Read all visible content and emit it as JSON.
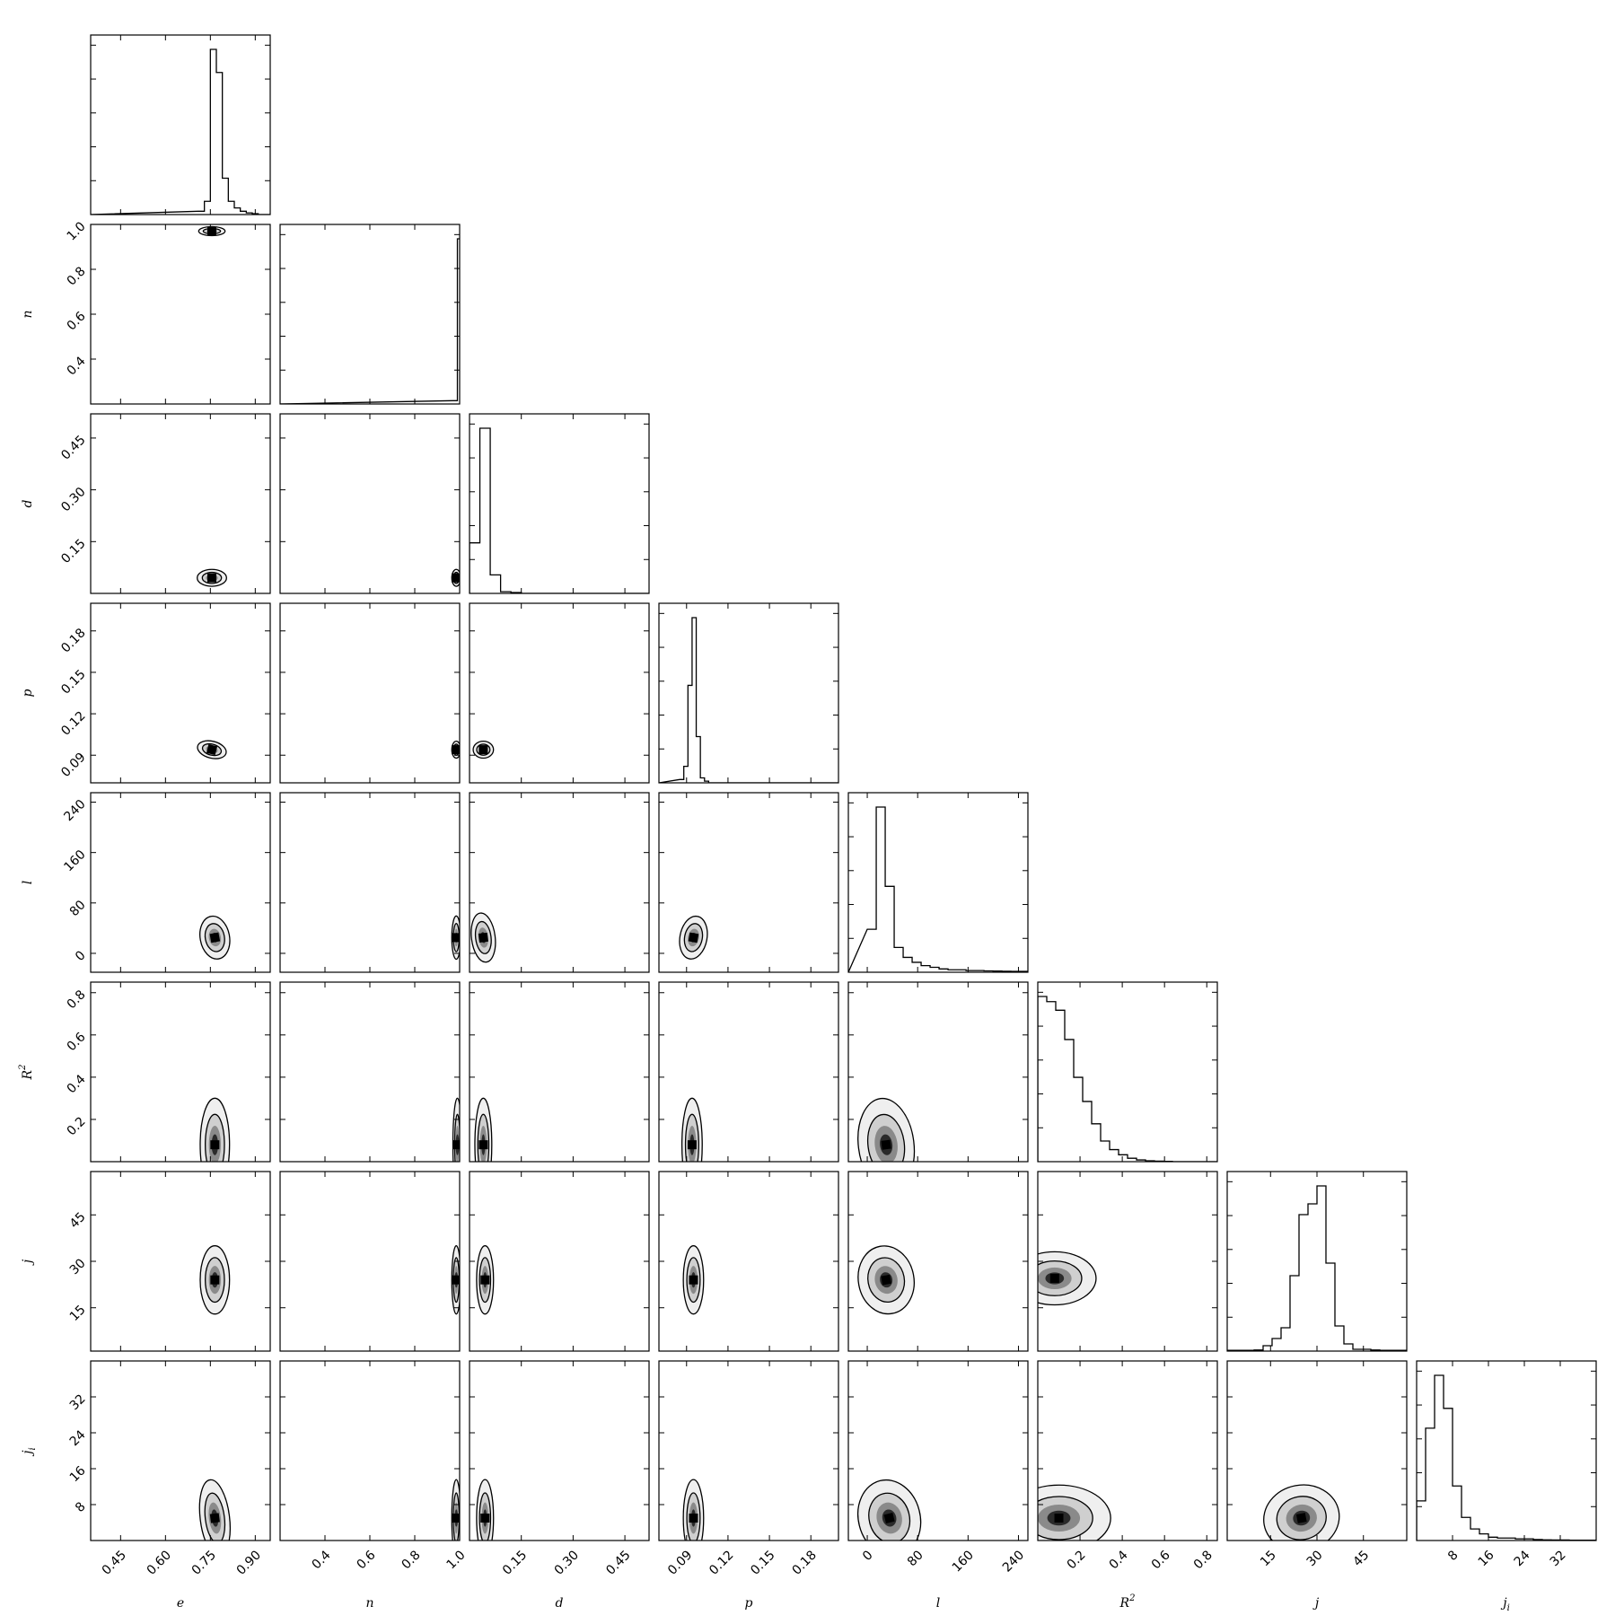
{
  "chart_data": {
    "type": "corner",
    "params": [
      {
        "key": "e",
        "label": "e",
        "sub": null,
        "sup": null,
        "range": [
          0.35,
          0.95
        ],
        "ticks": [
          0.45,
          0.6,
          0.75,
          0.9
        ],
        "tick_labels": [
          "0.45",
          "0.60",
          "0.75",
          "0.90"
        ]
      },
      {
        "key": "n",
        "label": "n",
        "sub": null,
        "sup": null,
        "range": [
          0.2,
          1.0
        ],
        "ticks": [
          0.4,
          0.6,
          0.8,
          1.0
        ],
        "tick_labels": [
          "0.4",
          "0.6",
          "0.8",
          "1.0"
        ]
      },
      {
        "key": "d",
        "label": "d",
        "sub": null,
        "sup": null,
        "range": [
          0.0,
          0.52
        ],
        "ticks": [
          0.15,
          0.3,
          0.45
        ],
        "tick_labels": [
          "0.15",
          "0.30",
          "0.45"
        ]
      },
      {
        "key": "p",
        "label": "p",
        "sub": null,
        "sup": null,
        "range": [
          0.07,
          0.2
        ],
        "ticks": [
          0.09,
          0.12,
          0.15,
          0.18
        ],
        "tick_labels": [
          "0.09",
          "0.12",
          "0.15",
          "0.18"
        ]
      },
      {
        "key": "l",
        "label": "l",
        "sub": null,
        "sup": null,
        "range": [
          -30,
          255
        ],
        "ticks": [
          0,
          80,
          160,
          240
        ],
        "tick_labels": [
          "0",
          "80",
          "160",
          "240"
        ]
      },
      {
        "key": "R2",
        "label": "R",
        "sub": null,
        "sup": "2",
        "range": [
          0.0,
          0.85
        ],
        "ticks": [
          0.2,
          0.4,
          0.6,
          0.8
        ],
        "tick_labels": [
          "0.2",
          "0.4",
          "0.6",
          "0.8"
        ]
      },
      {
        "key": "j",
        "label": "j",
        "sub": null,
        "sup": null,
        "range": [
          1,
          59
        ],
        "ticks": [
          15,
          30,
          45
        ],
        "tick_labels": [
          "15",
          "30",
          "45"
        ]
      },
      {
        "key": "ji",
        "label": "j",
        "sub": "i",
        "sup": null,
        "range": [
          0,
          40
        ],
        "ticks": [
          8,
          16,
          24,
          32
        ],
        "tick_labels": [
          "8",
          "16",
          "24",
          "32"
        ]
      }
    ],
    "histograms": [
      {
        "param": "e",
        "bins": [
          0.71,
          0.73,
          0.75,
          0.77,
          0.79,
          0.81,
          0.83,
          0.85,
          0.87,
          0.89
        ],
        "counts": [
          0.02,
          0.08,
          1.0,
          0.86,
          0.22,
          0.08,
          0.04,
          0.02,
          0.01,
          0.005
        ]
      },
      {
        "param": "n",
        "bins": [
          0.97,
          0.99
        ],
        "counts": [
          0.02,
          1.0
        ]
      },
      {
        "param": "d",
        "bins": [
          0.0,
          0.03,
          0.06,
          0.09,
          0.12
        ],
        "counts": [
          0.3,
          0.98,
          0.11,
          0.01,
          0.005
        ]
      },
      {
        "param": "p",
        "bins": [
          0.085,
          0.088,
          0.091,
          0.094,
          0.097,
          0.1,
          0.103
        ],
        "counts": [
          0.02,
          0.1,
          0.59,
          1.0,
          0.28,
          0.03,
          0.01
        ]
      },
      {
        "param": "l",
        "bins": [
          0,
          14.25,
          28.5,
          42.75,
          57,
          71.25,
          85.5,
          99.75,
          114,
          128.25,
          142.5,
          156.75,
          171,
          185.25,
          199.5,
          213.75,
          228,
          242.25
        ],
        "counts": [
          0.26,
          1.0,
          0.52,
          0.15,
          0.09,
          0.06,
          0.04,
          0.03,
          0.02,
          0.015,
          0.015,
          0.01,
          0.01,
          0.008,
          0.007,
          0.006,
          0.005,
          0.005
        ]
      },
      {
        "param": "R2",
        "bins": [
          0.0,
          0.0425,
          0.085,
          0.1275,
          0.17,
          0.2125,
          0.255,
          0.2975,
          0.34,
          0.3825,
          0.425,
          0.4675,
          0.51,
          0.5525,
          0.595
        ],
        "counts": [
          0.96,
          0.93,
          0.88,
          0.71,
          0.49,
          0.35,
          0.22,
          0.12,
          0.07,
          0.04,
          0.02,
          0.01,
          0.005,
          0.003,
          0.002
        ]
      },
      {
        "param": "j",
        "bins": [
          1.0,
          3.9,
          6.8,
          9.7,
          12.6,
          15.5,
          18.4,
          21.3,
          24.2,
          27.1,
          30.0,
          32.9,
          35.8,
          38.7,
          41.6,
          44.5,
          47.4,
          50.3,
          53.2,
          56.1
        ],
        "counts": [
          0.004,
          0.004,
          0.004,
          0.006,
          0.03,
          0.07,
          0.13,
          0.42,
          0.76,
          0.82,
          0.92,
          0.49,
          0.14,
          0.04,
          0.01,
          0.01,
          0.006,
          0.004,
          0.004,
          0.004
        ]
      },
      {
        "param": "ji",
        "bins": [
          0,
          2,
          4,
          6,
          8,
          10,
          12,
          14,
          16,
          18,
          20,
          22,
          24,
          26,
          28,
          30,
          32,
          34,
          36,
          38
        ],
        "counts": [
          0.24,
          0.68,
          1.0,
          0.8,
          0.33,
          0.14,
          0.07,
          0.04,
          0.02,
          0.015,
          0.015,
          0.01,
          0.01,
          0.006,
          0.004,
          0.003,
          0.003,
          0.002,
          0.002,
          0.002
        ]
      }
    ],
    "pairs": [
      {
        "x": "e",
        "y": "n",
        "mean": [
          0.755,
          0.97
        ],
        "sd": [
          0.018,
          0.004
        ],
        "rho": 0
      },
      {
        "x": "e",
        "y": "d",
        "mean": [
          0.755,
          0.045
        ],
        "sd": [
          0.02,
          0.01
        ],
        "rho": 0
      },
      {
        "x": "n",
        "y": "d",
        "mean": [
          0.985,
          0.045
        ],
        "sd": [
          0.008,
          0.01
        ],
        "rho": 0
      },
      {
        "x": "e",
        "y": "p",
        "mean": [
          0.755,
          0.094
        ],
        "sd": [
          0.02,
          0.0025
        ],
        "rho": -0.4
      },
      {
        "x": "n",
        "y": "p",
        "mean": [
          0.985,
          0.094
        ],
        "sd": [
          0.008,
          0.0025
        ],
        "rho": 0
      },
      {
        "x": "d",
        "y": "p",
        "mean": [
          0.04,
          0.094
        ],
        "sd": [
          0.012,
          0.0025
        ],
        "rho": 0
      },
      {
        "x": "e",
        "y": "l",
        "mean": [
          0.765,
          25
        ],
        "sd": [
          0.02,
          14
        ],
        "rho": 0.3
      },
      {
        "x": "n",
        "y": "l",
        "mean": [
          0.985,
          25
        ],
        "sd": [
          0.008,
          14
        ],
        "rho": 0
      },
      {
        "x": "d",
        "y": "l",
        "mean": [
          0.04,
          25
        ],
        "sd": [
          0.014,
          16
        ],
        "rho": 0.2
      },
      {
        "x": "p",
        "y": "l",
        "mean": [
          0.095,
          25
        ],
        "sd": [
          0.004,
          14
        ],
        "rho": -0.3
      },
      {
        "x": "e",
        "y": "R2",
        "mean": [
          0.765,
          0.08
        ],
        "sd": [
          0.02,
          0.09
        ],
        "rho": 0
      },
      {
        "x": "n",
        "y": "R2",
        "mean": [
          0.99,
          0.08
        ],
        "sd": [
          0.006,
          0.09
        ],
        "rho": 0
      },
      {
        "x": "d",
        "y": "R2",
        "mean": [
          0.04,
          0.08
        ],
        "sd": [
          0.01,
          0.09
        ],
        "rho": 0
      },
      {
        "x": "p",
        "y": "R2",
        "mean": [
          0.094,
          0.08
        ],
        "sd": [
          0.003,
          0.09
        ],
        "rho": 0
      },
      {
        "x": "l",
        "y": "R2",
        "mean": [
          30,
          0.08
        ],
        "sd": [
          18,
          0.09
        ],
        "rho": 0.2
      },
      {
        "x": "e",
        "y": "j",
        "mean": [
          0.765,
          24
        ],
        "sd": [
          0.02,
          4.5
        ],
        "rho": 0
      },
      {
        "x": "n",
        "y": "j",
        "mean": [
          0.985,
          24
        ],
        "sd": [
          0.008,
          4.5
        ],
        "rho": 0
      },
      {
        "x": "d",
        "y": "j",
        "mean": [
          0.045,
          24
        ],
        "sd": [
          0.01,
          4.5
        ],
        "rho": 0
      },
      {
        "x": "p",
        "y": "j",
        "mean": [
          0.095,
          24
        ],
        "sd": [
          0.003,
          4.5
        ],
        "rho": 0
      },
      {
        "x": "l",
        "y": "j",
        "mean": [
          30,
          24
        ],
        "sd": [
          18,
          4.5
        ],
        "rho": 0.3
      },
      {
        "x": "R2",
        "y": "j",
        "mean": [
          0.08,
          24.5
        ],
        "sd": [
          0.08,
          3.5
        ],
        "rho": 0
      },
      {
        "x": "e",
        "y": "ji",
        "mean": [
          0.765,
          5
        ],
        "sd": [
          0.02,
          3.5
        ],
        "rho": 0.2
      },
      {
        "x": "n",
        "y": "ji",
        "mean": [
          0.985,
          5
        ],
        "sd": [
          0.008,
          3.5
        ],
        "rho": 0
      },
      {
        "x": "d",
        "y": "ji",
        "mean": [
          0.045,
          5
        ],
        "sd": [
          0.01,
          3.5
        ],
        "rho": 0
      },
      {
        "x": "p",
        "y": "ji",
        "mean": [
          0.095,
          5
        ],
        "sd": [
          0.003,
          3.5
        ],
        "rho": 0
      },
      {
        "x": "l",
        "y": "ji",
        "mean": [
          35,
          5
        ],
        "sd": [
          20,
          3.5
        ],
        "rho": 0.4
      },
      {
        "x": "R2",
        "y": "ji",
        "mean": [
          0.1,
          5
        ],
        "sd": [
          0.1,
          3
        ],
        "rho": 0
      },
      {
        "x": "j",
        "y": "ji",
        "mean": [
          25,
          5
        ],
        "sd": [
          5,
          3
        ],
        "rho": 0.3
      }
    ],
    "contour_levels": [
      "1-sigma",
      "2-sigma"
    ],
    "colors": {
      "line": "#000000",
      "fill_dark": "#1a1a1a",
      "fill_light": "#f0f0f0"
    },
    "grid": false,
    "legend": "none"
  }
}
